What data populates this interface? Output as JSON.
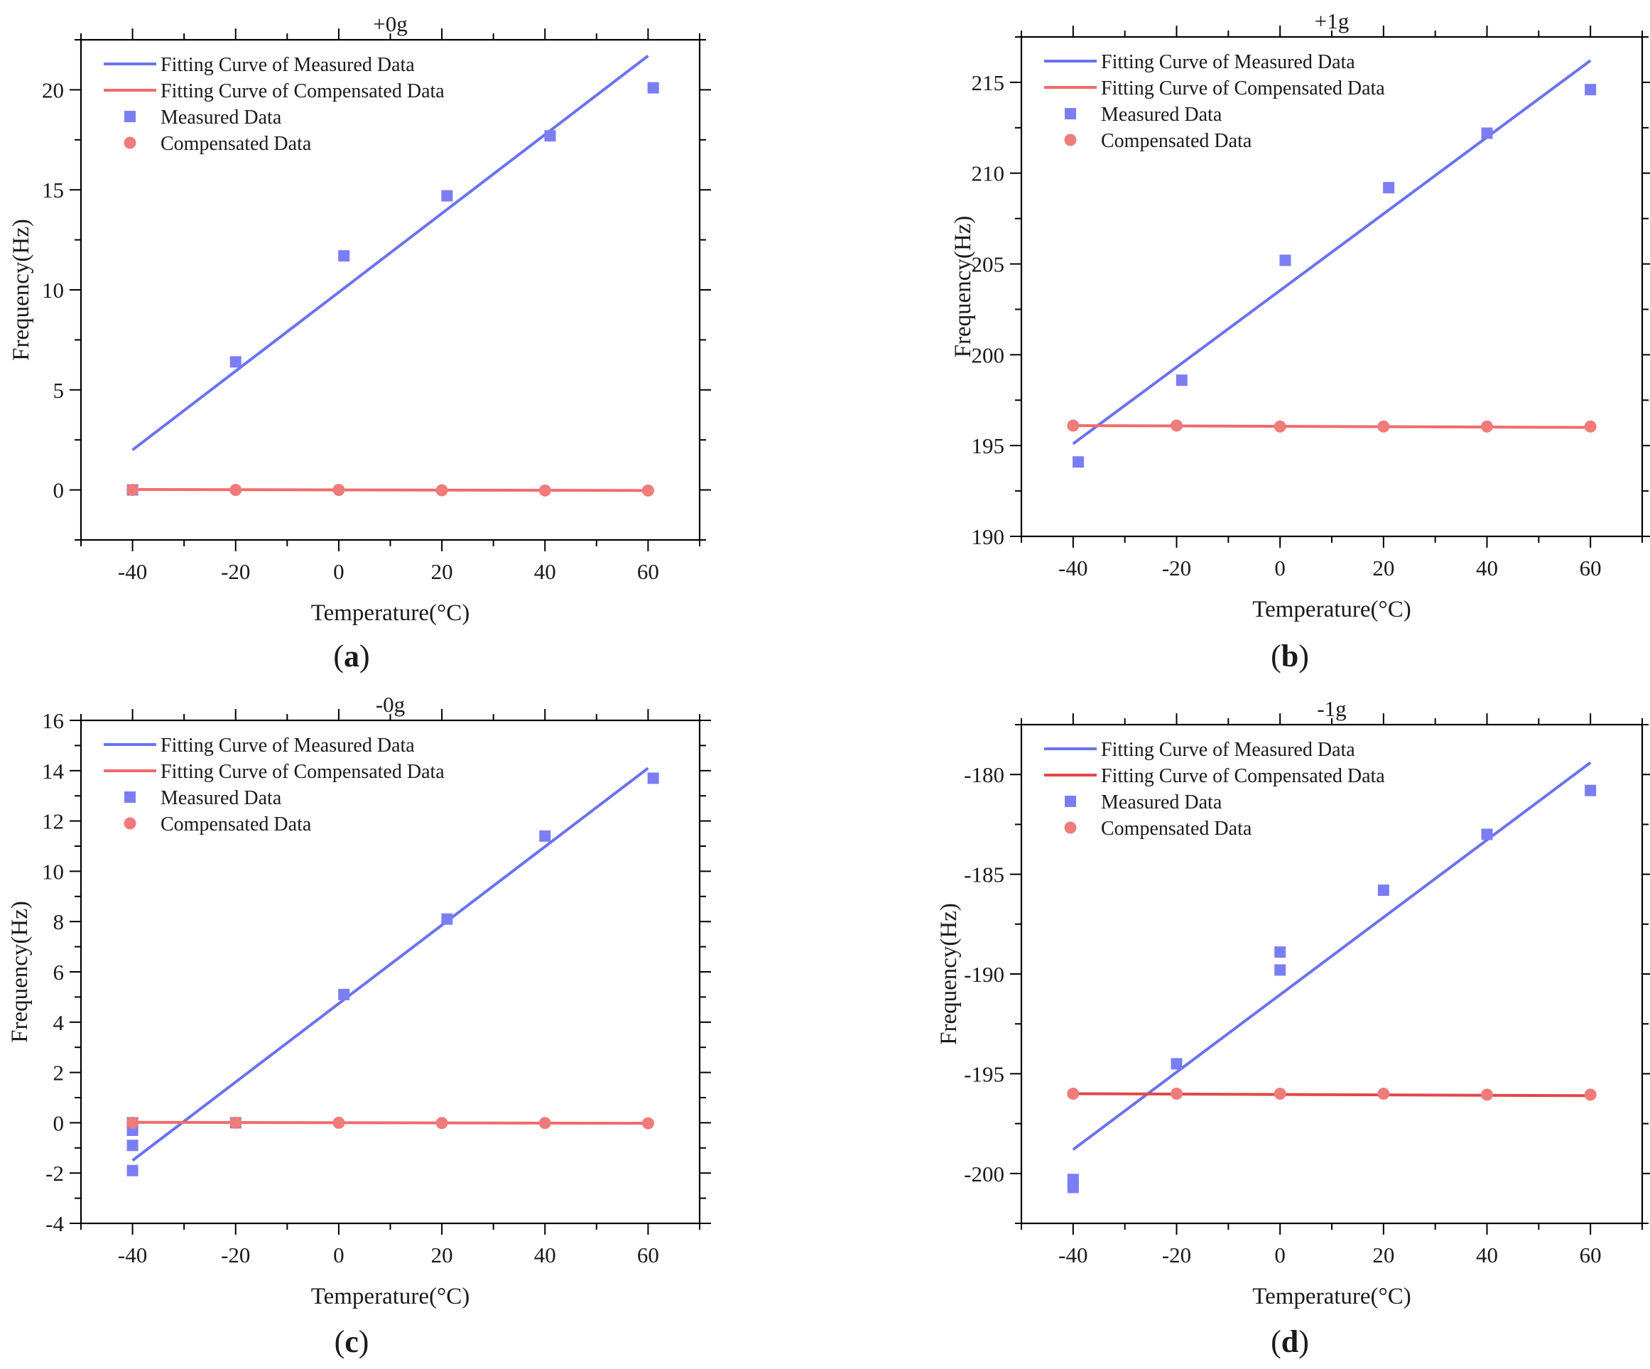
{
  "chart_data": [
    {
      "type": "line",
      "panel_label": "a",
      "title": "+0g",
      "xlabel": "Temperature(°C)",
      "ylabel": "Frequency(Hz)",
      "xlim": [
        -50,
        70
      ],
      "ylim": [
        -2.5,
        22.5
      ],
      "xticks": [
        -40,
        -20,
        0,
        20,
        40,
        60
      ],
      "yticks": [
        0,
        5,
        10,
        15,
        20
      ],
      "legend_position": "top-left",
      "series": [
        {
          "name": "Fitting Curve of Measured Data",
          "kind": "line",
          "color": "#6b72f0",
          "x": [
            -40,
            60
          ],
          "y": [
            2.0,
            21.7
          ]
        },
        {
          "name": "Fitting Curve of Compensated Data",
          "kind": "line",
          "color": "#f06b6b",
          "x": [
            -40,
            60
          ],
          "y": [
            0.02,
            -0.03
          ]
        },
        {
          "name": "Measured Data",
          "kind": "scatter",
          "marker": "square",
          "color": "#7b7ef2",
          "x": [
            -40,
            -20,
            1,
            21,
            41,
            61
          ],
          "y": [
            0.0,
            6.4,
            11.7,
            14.7,
            17.7,
            20.1
          ]
        },
        {
          "name": "Compensated Data",
          "kind": "scatter",
          "marker": "circle",
          "color": "#f07b7b",
          "x": [
            -40,
            -20,
            0,
            20,
            40,
            60
          ],
          "y": [
            0.0,
            0.0,
            0.0,
            -0.02,
            -0.03,
            -0.03
          ]
        }
      ]
    },
    {
      "type": "line",
      "panel_label": "b",
      "title": "+1g",
      "xlabel": "Temperature(°C)",
      "ylabel": "Frequency(Hz)",
      "xlim": [
        -50,
        70
      ],
      "ylim": [
        190,
        217.5
      ],
      "xticks": [
        -40,
        -20,
        0,
        20,
        40,
        60
      ],
      "yticks": [
        190,
        195,
        200,
        205,
        210,
        215
      ],
      "legend_position": "top-left",
      "series": [
        {
          "name": "Fitting Curve of Measured Data",
          "kind": "line",
          "color": "#6b72f0",
          "x": [
            -40,
            60
          ],
          "y": [
            195.1,
            216.2
          ]
        },
        {
          "name": "Fitting Curve of Compensated Data",
          "kind": "line",
          "color": "#f06b6b",
          "x": [
            -40,
            60
          ],
          "y": [
            196.1,
            196.0
          ]
        },
        {
          "name": "Measured Data",
          "kind": "scatter",
          "marker": "square",
          "color": "#7b7ef2",
          "x": [
            -39,
            -19,
            1,
            21,
            40,
            60
          ],
          "y": [
            194.1,
            198.6,
            205.2,
            209.2,
            212.2,
            214.6
          ]
        },
        {
          "name": "Compensated Data",
          "kind": "scatter",
          "marker": "circle",
          "color": "#f07b7b",
          "x": [
            -40,
            -20,
            0,
            20,
            40,
            60
          ],
          "y": [
            196.1,
            196.1,
            196.05,
            196.05,
            196.05,
            196.05
          ]
        }
      ]
    },
    {
      "type": "line",
      "panel_label": "c",
      "title": "-0g",
      "xlabel": "Temperature(°C)",
      "ylabel": "Frequency(Hz)",
      "xlim": [
        -50,
        70
      ],
      "ylim": [
        -4,
        16
      ],
      "xticks": [
        -40,
        -20,
        0,
        20,
        40,
        60
      ],
      "yticks": [
        -4,
        -2,
        0,
        2,
        4,
        6,
        8,
        10,
        12,
        14,
        16
      ],
      "legend_position": "top-left",
      "series": [
        {
          "name": "Fitting Curve of Measured Data",
          "kind": "line",
          "color": "#6b72f0",
          "x": [
            -40,
            60
          ],
          "y": [
            -1.5,
            14.1
          ]
        },
        {
          "name": "Fitting Curve of Compensated Data",
          "kind": "line",
          "color": "#f06b6b",
          "x": [
            -40,
            60
          ],
          "y": [
            0.02,
            -0.02
          ]
        },
        {
          "name": "Measured Data",
          "kind": "scatter",
          "marker": "square",
          "color": "#7b7ef2",
          "x": [
            -40,
            -40,
            -40,
            -40,
            -20,
            1,
            21,
            40,
            61
          ],
          "y": [
            0.0,
            -0.3,
            -0.9,
            -1.9,
            0.0,
            5.1,
            8.1,
            11.4,
            13.7
          ]
        },
        {
          "name": "Compensated Data",
          "kind": "scatter",
          "marker": "circle",
          "color": "#f07b7b",
          "x": [
            -40,
            -20,
            0,
            20,
            40,
            60
          ],
          "y": [
            0.0,
            0.0,
            0.0,
            -0.01,
            -0.01,
            -0.02
          ]
        }
      ]
    },
    {
      "type": "line",
      "panel_label": "d",
      "title": "-1g",
      "xlabel": "Temperature(°C)",
      "ylabel": "Frequency(Hz)",
      "xlim": [
        -50,
        70
      ],
      "ylim": [
        -202.5,
        -177.5
      ],
      "xticks": [
        -40,
        -20,
        0,
        20,
        40,
        60
      ],
      "yticks": [
        -200,
        -195,
        -190,
        -185,
        -180
      ],
      "legend_position": "top-left",
      "series": [
        {
          "name": "Fitting Curve of Measured Data",
          "kind": "line",
          "color": "#6b72f0",
          "x": [
            -40,
            60
          ],
          "y": [
            -198.8,
            -179.4
          ]
        },
        {
          "name": "Fitting Curve of Compensated Data",
          "kind": "line",
          "color": "#e04848",
          "x": [
            -40,
            60
          ],
          "y": [
            -196.0,
            -196.1
          ]
        },
        {
          "name": "Measured Data",
          "kind": "scatter",
          "marker": "square",
          "color": "#7b7ef2",
          "x": [
            -40,
            -40,
            -40,
            -20,
            0,
            0,
            20,
            40,
            60
          ],
          "y": [
            -200.3,
            -200.5,
            -200.7,
            -194.5,
            -188.9,
            -189.8,
            -185.8,
            -183.0,
            -180.8
          ]
        },
        {
          "name": "Compensated Data",
          "kind": "scatter",
          "marker": "circle",
          "color": "#f07b7b",
          "x": [
            -40,
            -20,
            0,
            20,
            40,
            60
          ],
          "y": [
            -196.0,
            -196.0,
            -196.0,
            -196.0,
            -196.05,
            -196.05
          ]
        }
      ]
    }
  ]
}
